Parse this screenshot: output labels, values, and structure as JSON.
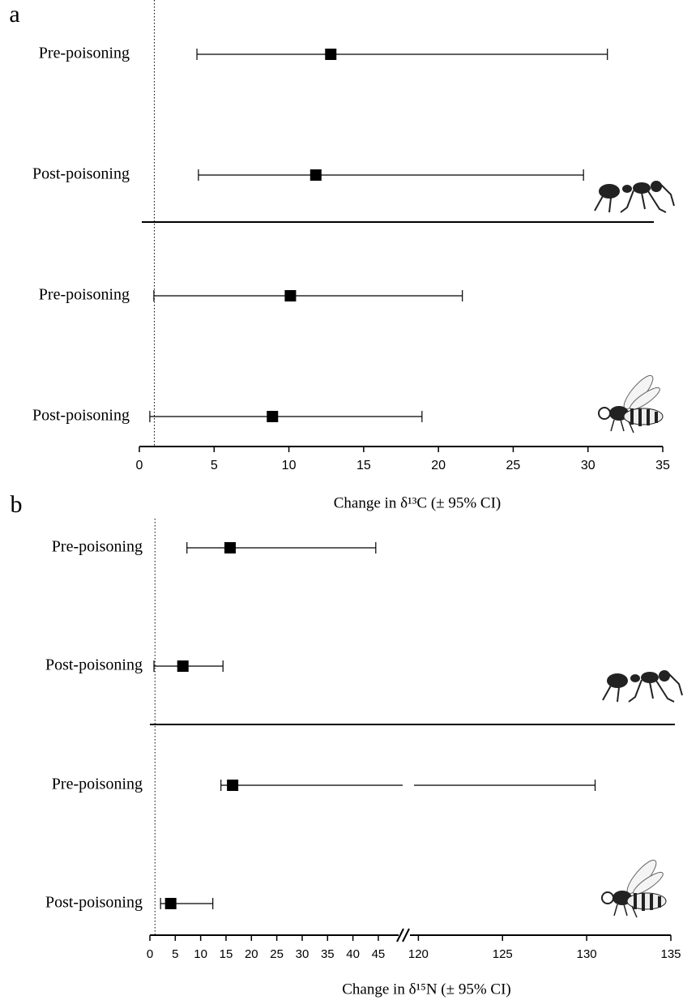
{
  "chart_data": [
    {
      "type": "forest",
      "panel_label": "a",
      "categories": [
        "Pre-poisoning",
        "Post-poisoning",
        "Pre-poisoning",
        "Post-poisoning"
      ],
      "values": [
        12.8,
        11.8,
        10.1,
        8.9
      ],
      "lower": [
        3.85,
        3.95,
        0.97,
        0.7
      ],
      "upper": [
        31.3,
        29.7,
        21.6,
        18.9
      ],
      "color": "#000000",
      "x_label": "Change in δ¹³C (± 95% CI)",
      "xlim": [
        0,
        35
      ],
      "xticks": [
        0,
        5,
        10,
        15,
        20,
        25,
        30,
        35
      ],
      "reference_line": 1
    },
    {
      "type": "forest",
      "panel_label": "b",
      "categories": [
        "Pre-poisoning",
        "Post-poisoning",
        "Pre-poisoning",
        "Post-poisoning"
      ],
      "values": [
        15.8,
        6.5,
        16.3,
        4.1
      ],
      "lower": [
        7.3,
        0.8,
        14,
        2.1
      ],
      "upper": [
        44.5,
        14.4,
        130.5,
        12.4
      ],
      "color": "#000000",
      "x_label": "Change in δ¹⁵N (± 95% CI)",
      "xlim": [
        0,
        135
      ],
      "axis_break": [
        49,
        119.5
      ],
      "xticks": [
        0,
        5,
        10,
        15,
        20,
        25,
        30,
        35,
        40,
        45,
        120,
        125,
        130,
        135
      ],
      "reference_line": 1
    }
  ]
}
